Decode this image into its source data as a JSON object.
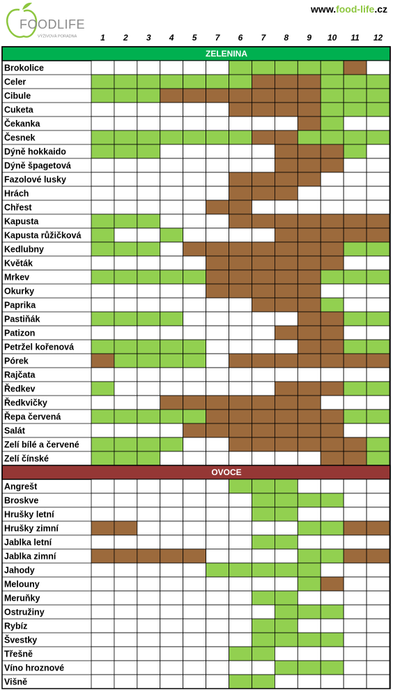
{
  "header": {
    "logo": "FOODLIFE",
    "logo_sub": "VÝŽIVOVÁ PORADNA",
    "url_prefix": "www.",
    "url_name": "food-life",
    "url_suffix": ".cz"
  },
  "months": [
    "1",
    "2",
    "3",
    "4",
    "5",
    "7",
    "6",
    "7",
    "8",
    "9",
    "10",
    "11",
    "12"
  ],
  "colors": {
    "G": "#92d050",
    "B": "#9c6a3c",
    "W": "#ffffff"
  },
  "sections": [
    {
      "title": "ZELENINA",
      "color": "#00b050",
      "rows": [
        {
          "name": "Brokolice",
          "cells": "WWWWWWGGGGGBW"
        },
        {
          "name": "Celer",
          "cells": "GGGGGGGBBBGGG"
        },
        {
          "name": "Cibule",
          "cells": "GGGBBBBBBBGGG"
        },
        {
          "name": "Cuketa",
          "cells": "WWWWWWBBBBGGG"
        },
        {
          "name": "Čekanka",
          "cells": "WWWWWWWWWBGWW"
        },
        {
          "name": "Česnek",
          "cells": "GGGGGGGBBGGGG"
        },
        {
          "name": "Dýně hokkaido",
          "cells": "GGGWWWWWBBBGW"
        },
        {
          "name": "Dýně špagetová",
          "cells": "WWWWWWWWBBBWW"
        },
        {
          "name": "Fazolové lusky",
          "cells": "WWWWWWBBBBWWW"
        },
        {
          "name": "Hrách",
          "cells": "WWWWWWBBBWWWW"
        },
        {
          "name": "Chřest",
          "cells": "WWWWWBBWWWWWW"
        },
        {
          "name": "Kapusta",
          "cells": "GGGWWWBBBBBBB"
        },
        {
          "name": "Kapusta růžičková",
          "cells": "GWWGWWWWBBBBB"
        },
        {
          "name": "Kedlubny",
          "cells": "GGGWBBBBBBBGG"
        },
        {
          "name": "Květák",
          "cells": "WWWWWBBBBBBWW"
        },
        {
          "name": "Mrkev",
          "cells": "GGGGGBBBBBGGG"
        },
        {
          "name": "Okurky",
          "cells": "WWWWWBBBBBWWW"
        },
        {
          "name": "Paprika",
          "cells": "WWWWWWWBBBGWW"
        },
        {
          "name": "Pastiňák",
          "cells": "GGGGWWWWWBBGG"
        },
        {
          "name": "Patizon",
          "cells": "WWWWWWWWBBBWW"
        },
        {
          "name": "Petržel kořenová",
          "cells": "GGGGGWWWWBBGG"
        },
        {
          "name": "Pórek",
          "cells": "BGGGGWBBBBBBB"
        },
        {
          "name": "Rajčata",
          "cells": "WWWWWWWWWWWWW"
        },
        {
          "name": "Ředkev",
          "cells": "GWWWWWWWBBBGG"
        },
        {
          "name": "Ředkvičky",
          "cells": "WWWBBBBBBBWWW"
        },
        {
          "name": "Řepa červená",
          "cells": "GGGGGBBBBBBGG"
        },
        {
          "name": "Salát",
          "cells": "WWWWBBBBBBBWW"
        },
        {
          "name": "Zelí bílé a červené",
          "cells": "GGGGWWBBBBBBG"
        },
        {
          "name": "Zelí čínské",
          "cells": "GGGWWWWWWWBBG"
        }
      ]
    },
    {
      "title": "OVOCE",
      "color": "#953735",
      "rows": [
        {
          "name": "Angrešt",
          "cells": "WWWWWWGGGWWWW"
        },
        {
          "name": "Broskve",
          "cells": "WWWWWWWGGGGWW"
        },
        {
          "name": "Hrušky letní",
          "cells": "WWWWWWWGGWWWW"
        },
        {
          "name": "Hrušky zimní",
          "cells": "BBWWWWWWWGGBB"
        },
        {
          "name": "Jablka letní",
          "cells": "WWWWWWWGGWWWW"
        },
        {
          "name": "Jablka zimní",
          "cells": "BBBBBWWWWGGBB"
        },
        {
          "name": "Jahody",
          "cells": "WWWWWGGGGGWWW"
        },
        {
          "name": "Melouny",
          "cells": "WWWWWWWWWGBWW"
        },
        {
          "name": "Meruňky",
          "cells": "WWWWWWWGGWWWW"
        },
        {
          "name": "Ostružiny",
          "cells": "WWWWWWWWGGGWW"
        },
        {
          "name": "Rybíz",
          "cells": "WWWWWWWGGWWWW"
        },
        {
          "name": "Švestky",
          "cells": "WWWWWWWGGGGWW"
        },
        {
          "name": "Třešně",
          "cells": "WWWWWWGGWWWWW"
        },
        {
          "name": "Víno hroznové",
          "cells": "WWWWWWWWGGGWW"
        },
        {
          "name": "Višně",
          "cells": "WWWWWWGGWWWWW"
        }
      ]
    }
  ]
}
